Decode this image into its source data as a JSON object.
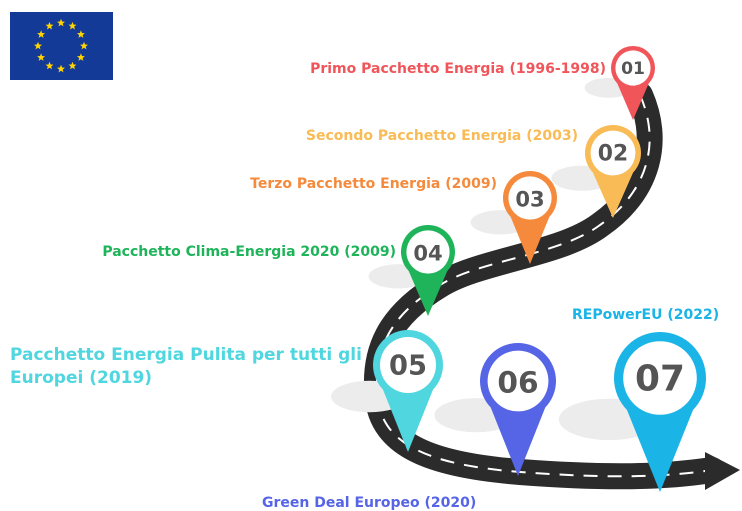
{
  "milestones": [
    {
      "number": "01",
      "label": "Primo Pacchetto Energia (1996-1998)",
      "color": "#f0555a"
    },
    {
      "number": "02",
      "label": "Secondo Pacchetto Energia (2003)",
      "color": "#f9bb55"
    },
    {
      "number": "03",
      "label": "Terzo Pacchetto Energia (2009)",
      "color": "#f58a3c"
    },
    {
      "number": "04",
      "label": "Pacchetto Clima-Energia 2020 (2009)",
      "color": "#1fb45a"
    },
    {
      "number": "05",
      "label": "Pacchetto Energia Pulita per tutti gli Europei (2019)",
      "color": "#4fd6df"
    },
    {
      "number": "06",
      "label": "Green Deal Europeo (2020)",
      "color": "#5565e6"
    },
    {
      "number": "07",
      "label": "REPowerEU (2022)",
      "color": "#1ab4e6"
    }
  ]
}
